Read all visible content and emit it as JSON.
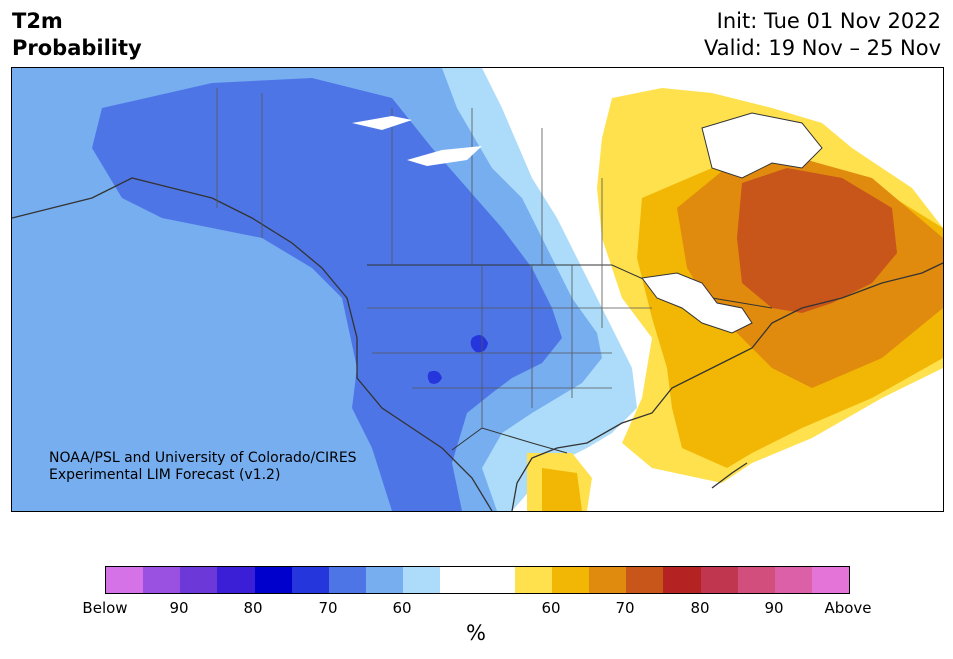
{
  "title": {
    "line1": "T2m",
    "line2": "Probability"
  },
  "dates": {
    "init": "Init: Tue 01 Nov 2022",
    "valid": "Valid: 19 Nov – 25 Nov"
  },
  "credit": {
    "line1": "NOAA/PSL and University of Colorado/CIRES",
    "line2": "Experimental LIM Forecast (v1.2)"
  },
  "colorbar": {
    "colors": [
      "#d672e8",
      "#9a50e0",
      "#6c38d8",
      "#3a1fd6",
      "#0000cc",
      "#2436dc",
      "#4e75e6",
      "#76aef0",
      "#acdcfa",
      "#ffffff",
      "#ffffff",
      "#ffe14d",
      "#f2b705",
      "#e08a0e",
      "#c8551a",
      "#b42222",
      "#c0364e",
      "#d24e7c",
      "#dc60a8",
      "#e474d8"
    ],
    "tick_labels": [
      "Below",
      "90",
      "80",
      "70",
      "60",
      "60",
      "70",
      "80",
      "90",
      "Above"
    ],
    "unit": "%"
  },
  "map_colors": {
    "blue_60": "#acdcfa",
    "blue_70": "#76aef0",
    "blue_80": "#4e75e6",
    "blue_90": "#2436dc",
    "orange_60": "#ffe14d",
    "orange_70": "#f2b705",
    "orange_80": "#e08a0e",
    "orange_90": "#c8551a",
    "border": "#333333"
  }
}
